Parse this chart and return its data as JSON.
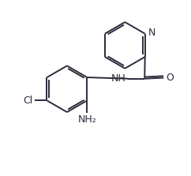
{
  "bg_color": "#ffffff",
  "line_color": "#2b2b3b",
  "line_width": 1.4,
  "font_size": 8.5,
  "fig_width": 2.42,
  "fig_height": 2.23,
  "dpi": 100,
  "xlim": [
    0,
    10
  ],
  "ylim": [
    0,
    9.2
  ]
}
